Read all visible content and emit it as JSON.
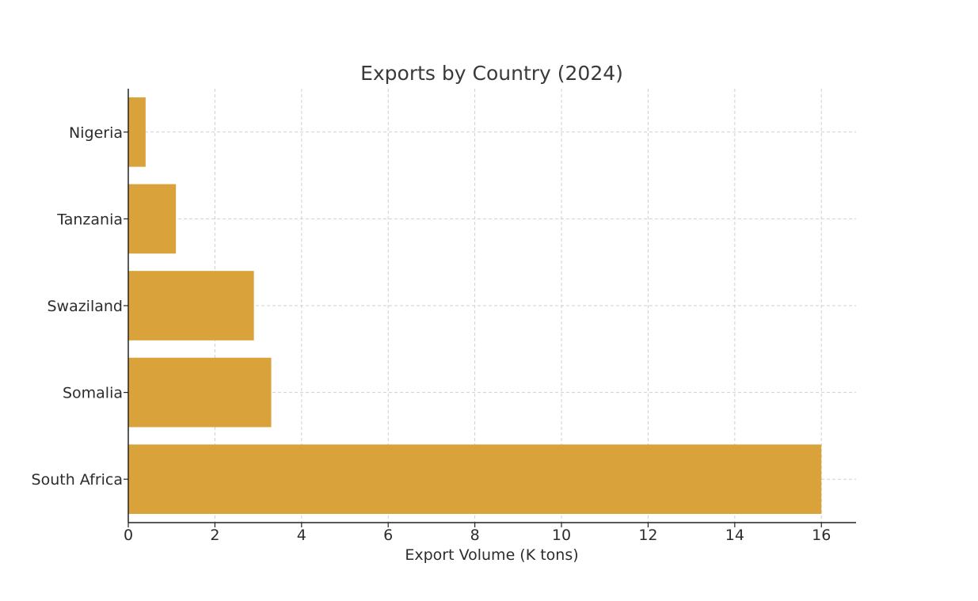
{
  "chart_data": {
    "type": "bar",
    "orientation": "horizontal",
    "title": "Exports by Country (2024)",
    "xlabel": "Export Volume (K tons)",
    "ylabel": "",
    "categories": [
      "South Africa",
      "Somalia",
      "Swaziland",
      "Tanzania",
      "Nigeria"
    ],
    "values": [
      16.0,
      3.3,
      2.9,
      1.1,
      0.4
    ],
    "xlim": [
      0,
      16.8
    ],
    "x_ticks": [
      "0",
      "2",
      "4",
      "6",
      "8",
      "10",
      "12",
      "14",
      "16"
    ],
    "grid": true,
    "bar_color": "#D9A23A"
  }
}
